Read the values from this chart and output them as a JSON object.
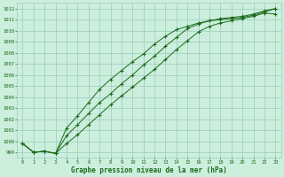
{
  "title": "Graphe pression niveau de la mer (hPa)",
  "xlabel_hours": [
    0,
    1,
    2,
    3,
    4,
    5,
    6,
    7,
    8,
    9,
    10,
    11,
    12,
    13,
    14,
    15,
    16,
    17,
    18,
    19,
    20,
    21,
    22,
    23
  ],
  "ylim": [
    998.5,
    1012.5
  ],
  "yticks": [
    999,
    1000,
    1001,
    1002,
    1003,
    1004,
    1005,
    1006,
    1007,
    1008,
    1009,
    1010,
    1011,
    1012
  ],
  "line1": [
    999.8,
    999.0,
    999.1,
    998.9,
    999.8,
    1000.6,
    1001.5,
    1002.4,
    1003.3,
    1004.1,
    1004.9,
    1005.7,
    1006.5,
    1007.4,
    1008.3,
    1009.1,
    1009.9,
    1010.4,
    1010.7,
    1010.9,
    1011.1,
    1011.3,
    1011.6,
    1011.5
  ],
  "line2": [
    999.8,
    999.0,
    999.1,
    998.9,
    1000.5,
    1001.5,
    1002.5,
    1003.5,
    1004.3,
    1005.2,
    1006.0,
    1006.9,
    1007.7,
    1008.6,
    1009.4,
    1010.2,
    1010.6,
    1010.9,
    1011.1,
    1011.2,
    1011.3,
    1011.5,
    1011.8,
    1012.0
  ],
  "line3": [
    999.8,
    999.0,
    999.1,
    998.9,
    1001.2,
    1002.3,
    1003.5,
    1004.7,
    1005.6,
    1006.4,
    1007.2,
    1007.9,
    1008.8,
    1009.5,
    1010.1,
    1010.4,
    1010.7,
    1010.9,
    1011.0,
    1011.1,
    1011.2,
    1011.4,
    1011.7,
    1012.0
  ],
  "line_color": "#1a6b1a",
  "bg_color": "#cceedd",
  "grid_color": "#99ccbb",
  "title_color": "#1a6b1a",
  "marker": "+",
  "marker_size": 3.0,
  "lw": 0.7
}
